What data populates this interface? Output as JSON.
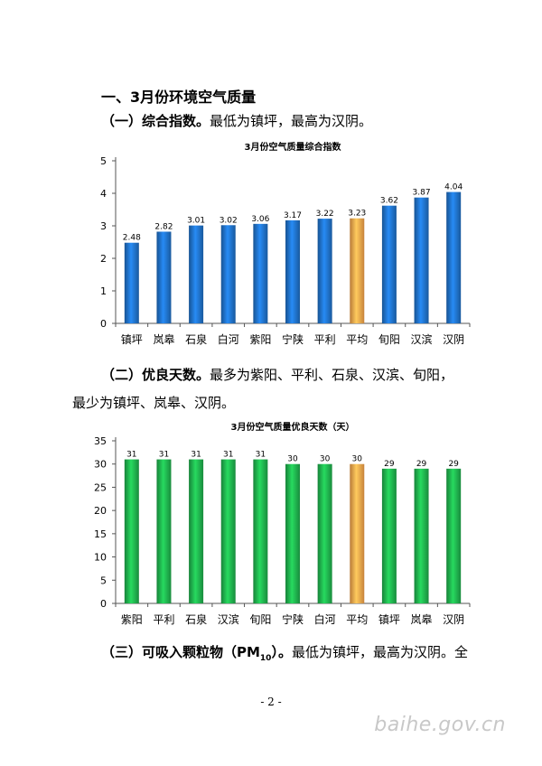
{
  "heading": "一、3月份环境空气质量",
  "section1": {
    "title": "（一）综合指数。",
    "text": "最低为镇坪，最高为汉阴。"
  },
  "section2": {
    "title": "（二）优良天数。",
    "text_line1": "最多为紫阳、平利、石泉、汉滨、旬阳，",
    "text_line2": "最少为镇坪、岚皋、汉阴。"
  },
  "section3": {
    "title": "（三）可吸入颗粒物（PM",
    "subscript": "10",
    "title_end": "）。",
    "text": "最低为镇坪，最高为汉阴。全"
  },
  "footer": "- 2 -",
  "watermark": "baihe.gov.cn",
  "chart_data": [
    {
      "type": "bar",
      "title": "3月份空气质量综合指数",
      "categories": [
        "镇坪",
        "岚皋",
        "石泉",
        "白河",
        "紫阳",
        "宁陕",
        "平利",
        "平均",
        "旬阳",
        "汉滨",
        "汉阴"
      ],
      "values": [
        2.48,
        2.82,
        3.01,
        3.02,
        3.06,
        3.17,
        3.22,
        3.23,
        3.62,
        3.87,
        4.04
      ],
      "value_labels": [
        "2.48",
        "2.82",
        "3.01",
        "3.02",
        "3.06",
        "3.17",
        "3.22",
        "3.23",
        "3.62",
        "3.87",
        "4.04"
      ],
      "ylim": [
        0,
        5
      ],
      "yticks": [
        0,
        1,
        2,
        3,
        4,
        5
      ],
      "grid": false,
      "colors": {
        "bar": "#1f6fc4",
        "highlight": "#f7a24a"
      },
      "highlight_category": "平均"
    },
    {
      "type": "bar",
      "title": "3月份空气质量优良天数（天）",
      "categories": [
        "紫阳",
        "平利",
        "石泉",
        "汉滨",
        "旬阳",
        "宁陕",
        "白河",
        "平均",
        "镇坪",
        "岚皋",
        "汉阴"
      ],
      "values": [
        31,
        31,
        31,
        31,
        31,
        30,
        30,
        30,
        29,
        29,
        29
      ],
      "value_labels": [
        "31",
        "31",
        "31",
        "31",
        "31",
        "30",
        "30",
        "30",
        "29",
        "29",
        "29"
      ],
      "ylim": [
        0,
        35
      ],
      "yticks": [
        0,
        5,
        10,
        15,
        20,
        25,
        30,
        35
      ],
      "grid": false,
      "colors": {
        "bar": "#1fae4c",
        "highlight": "#f7a24a"
      },
      "highlight_category": "平均"
    }
  ]
}
